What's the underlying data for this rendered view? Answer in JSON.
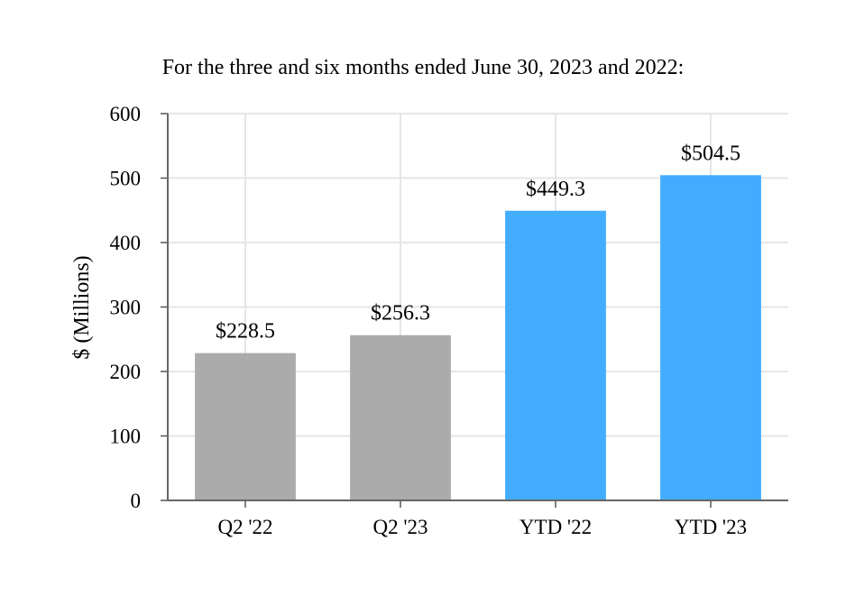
{
  "chart_data": {
    "type": "bar",
    "title": "For the three and six months ended June 30, 2023 and 2022:",
    "xlabel": "",
    "ylabel": "$ (Millions)",
    "ylim": [
      0,
      600
    ],
    "yticks": [
      0,
      100,
      200,
      300,
      400,
      500,
      600
    ],
    "categories": [
      "Q2 '22",
      "Q2 '23",
      "YTD '22",
      "YTD '23"
    ],
    "values": [
      228.5,
      256.3,
      449.3,
      504.5
    ],
    "data_labels": [
      "$228.5",
      "$256.3",
      "$449.3",
      "$504.5"
    ],
    "bar_colors": [
      "#ababab",
      "#ababab",
      "#42adff",
      "#42adff"
    ],
    "grid": true,
    "legend": "none"
  }
}
